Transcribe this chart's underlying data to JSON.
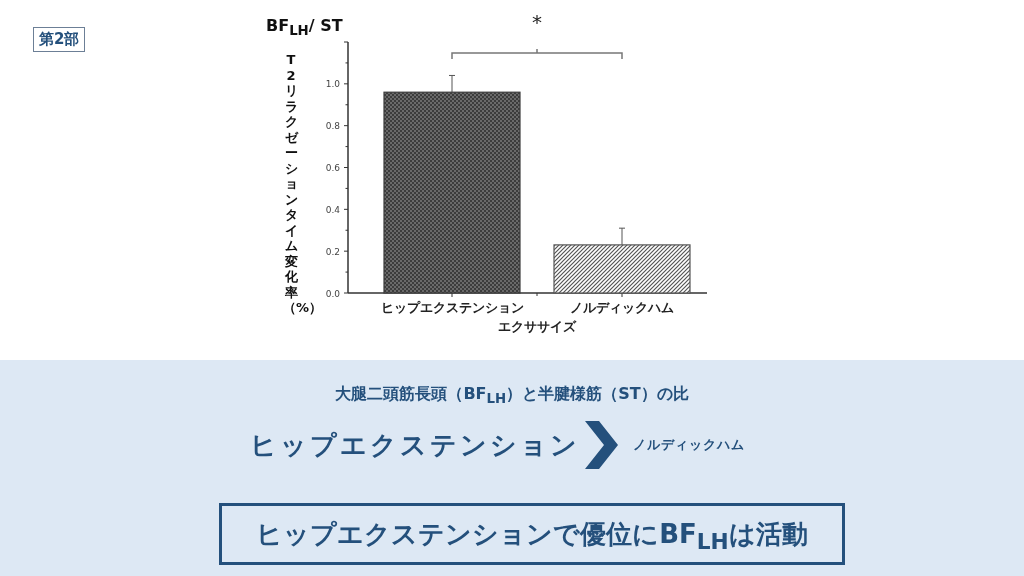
{
  "chart_data": {
    "type": "bar",
    "title": "BF$_{LH}$/ ST",
    "ylabel": "T2リラクゼーションタイム変化率（%）",
    "xlabel": "エクササイズ",
    "categories": [
      "ヒップエクステンション",
      "ノルディックハム"
    ],
    "values": [
      0.96,
      0.23
    ],
    "errors": [
      [
        0.96,
        1.04
      ],
      [
        0.23,
        0.31
      ]
    ],
    "colors": [
      "#3c3c3c",
      "#555555"
    ],
    "ylim": [
      0,
      1.2
    ],
    "yticks": [
      {
        "value": 0,
        "label": "0.0"
      },
      {
        "value": 0.1,
        "label": null
      },
      {
        "value": 0.2,
        "label": "0.2"
      },
      {
        "value": 0.3,
        "label": null
      },
      {
        "value": 0.4,
        "label": "0.4"
      },
      {
        "value": 0.5,
        "label": null
      },
      {
        "value": 0.6,
        "label": "0.6"
      },
      {
        "value": 0.7,
        "label": null
      },
      {
        "value": 0.8,
        "label": "0.8"
      },
      {
        "value": 0.9,
        "label": null
      },
      {
        "value": 1.0,
        "label": "1.0"
      },
      {
        "value": 1.1,
        "label": null
      }
    ],
    "annotations": [
      "*",
      "第2部",
      "大腿二頭筋長頭（BF$_{LH}$）と半腱様筋（ST）の比",
      "ヒップエクステンション",
      "ノルディックハム",
      "ヒップエクステンションで優位にBF$_{LH}$は活動"
    ]
  }
}
